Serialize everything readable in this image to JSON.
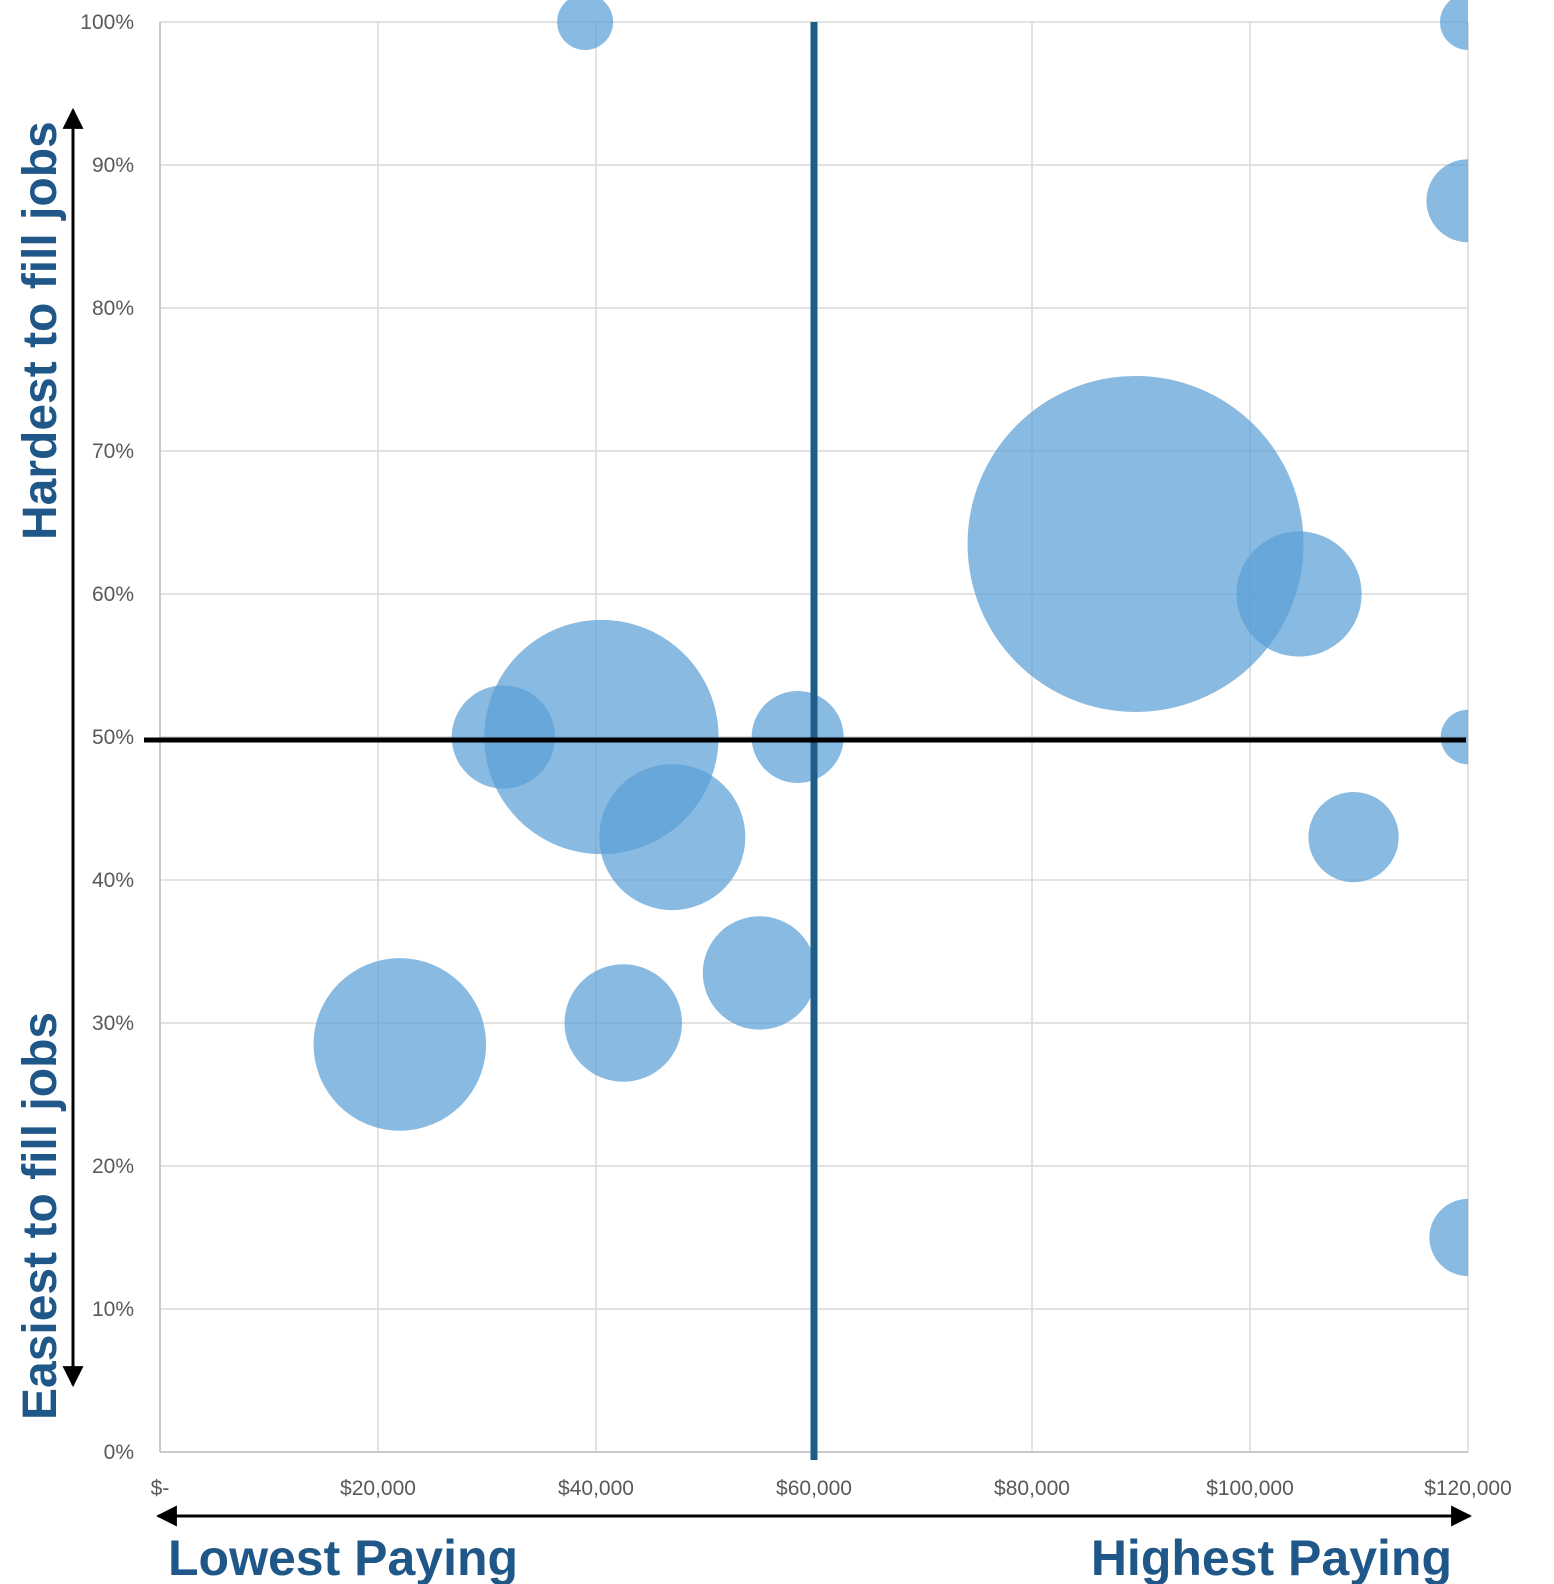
{
  "chart_data": {
    "type": "scatter",
    "variant": "bubble",
    "title": "",
    "xlabel": "",
    "ylabel": "",
    "xlim": [
      0,
      120000
    ],
    "ylim": [
      0,
      1
    ],
    "x_ticks": [
      {
        "value": 0,
        "label": "$-"
      },
      {
        "value": 20000,
        "label": "$20,000"
      },
      {
        "value": 40000,
        "label": "$40,000"
      },
      {
        "value": 60000,
        "label": "$60,000"
      },
      {
        "value": 80000,
        "label": "$80,000"
      },
      {
        "value": 100000,
        "label": "$100,000"
      },
      {
        "value": 120000,
        "label": "$120,000"
      }
    ],
    "y_ticks": [
      {
        "value": 0,
        "label": "0%"
      },
      {
        "value": 0.1,
        "label": "10%"
      },
      {
        "value": 0.2,
        "label": "20%"
      },
      {
        "value": 0.3,
        "label": "30%"
      },
      {
        "value": 0.4,
        "label": "40%"
      },
      {
        "value": 0.5,
        "label": "50%"
      },
      {
        "value": 0.6,
        "label": "60%"
      },
      {
        "value": 0.7,
        "label": "70%"
      },
      {
        "value": 0.8,
        "label": "80%"
      },
      {
        "value": 0.9,
        "label": "90%"
      },
      {
        "value": 1.0,
        "label": "100%"
      }
    ],
    "grid": true,
    "legend": "none",
    "bubble_color": "#5b9fd5",
    "bubble_opacity": 0.72,
    "points": [
      {
        "x": 39000,
        "y": 1.0,
        "size": 1.0
      },
      {
        "x": 120000,
        "y": 1.0,
        "size": 1.0
      },
      {
        "x": 120000,
        "y": 0.875,
        "size": 2.2
      },
      {
        "x": 89500,
        "y": 0.635,
        "size": 36
      },
      {
        "x": 104500,
        "y": 0.6,
        "size": 5.0
      },
      {
        "x": 31500,
        "y": 0.5,
        "size": 3.4
      },
      {
        "x": 40500,
        "y": 0.5,
        "size": 17.5
      },
      {
        "x": 58500,
        "y": 0.5,
        "size": 2.7
      },
      {
        "x": 120000,
        "y": 0.5,
        "size": 0.95
      },
      {
        "x": 47000,
        "y": 0.43,
        "size": 6.8
      },
      {
        "x": 109500,
        "y": 0.43,
        "size": 2.6
      },
      {
        "x": 55000,
        "y": 0.335,
        "size": 4.1
      },
      {
        "x": 42500,
        "y": 0.3,
        "size": 4.4
      },
      {
        "x": 22000,
        "y": 0.285,
        "size": 9.5
      },
      {
        "x": 120000,
        "y": 0.15,
        "size": 1.9
      }
    ],
    "reference_lines": [
      {
        "axis": "x",
        "value": 60000,
        "color": "#1f5c87"
      },
      {
        "axis": "y",
        "value": 0.5,
        "color": "#000000"
      }
    ],
    "annotations": {
      "y_top": "Hardest to fill jobs",
      "y_bottom": "Easiest to fill jobs",
      "x_left": "Lowest Paying",
      "x_right": "Highest Paying"
    }
  }
}
